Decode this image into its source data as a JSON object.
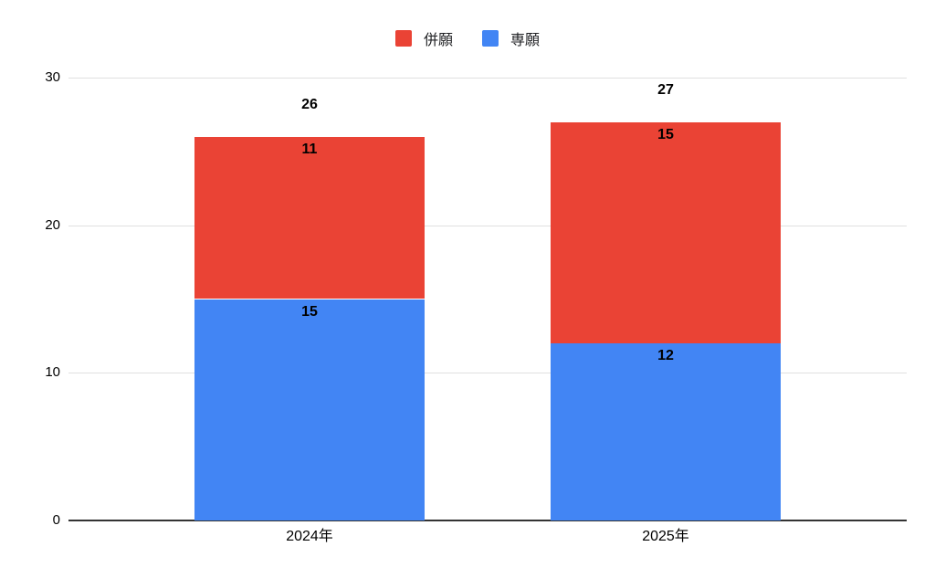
{
  "chart_data": {
    "type": "bar",
    "stacked": true,
    "categories": [
      "2024年",
      "2025年"
    ],
    "series": [
      {
        "name": "専願",
        "color": "#4285F4",
        "values": [
          15,
          12
        ]
      },
      {
        "name": "併願",
        "color": "#EA4335",
        "values": [
          11,
          15
        ]
      }
    ],
    "totals": [
      26,
      27
    ],
    "ylim": [
      0,
      30
    ],
    "yticks": [
      0,
      10,
      20,
      30
    ],
    "grid": true,
    "legend_position": "top"
  },
  "legend": {
    "items": [
      {
        "label": "併願",
        "color": "#EA4335"
      },
      {
        "label": "専願",
        "color": "#4285F4"
      }
    ]
  },
  "colors": {
    "grid": "#E0E0E0",
    "axis": "#333333",
    "label": "#000000",
    "background": "#FFFFFF"
  }
}
